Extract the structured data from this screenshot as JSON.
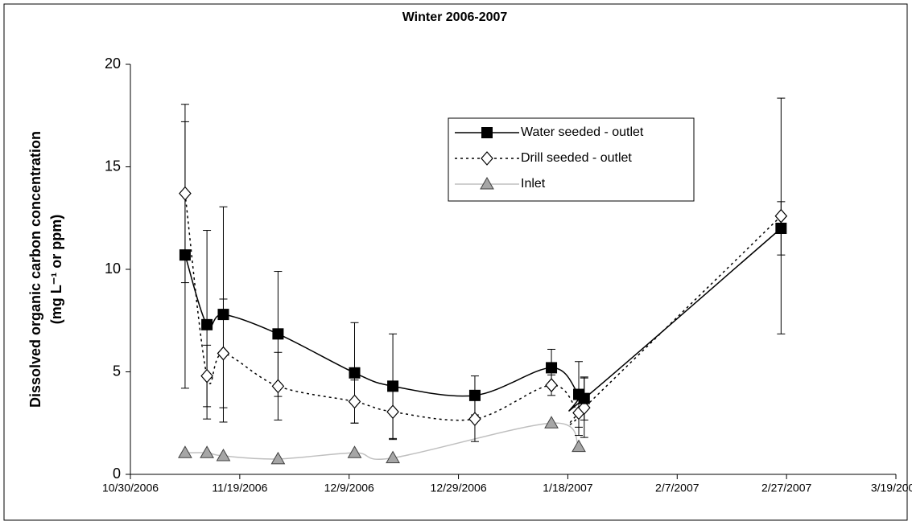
{
  "chart_data": {
    "type": "line",
    "title": "Winter 2006-2007",
    "y_label": [
      "Dissolved organic carbon concentration",
      "(mg L⁻¹ or ppm)"
    ],
    "xlim": [
      "2006-10-30",
      "2007-03-19"
    ],
    "xticks": [
      {
        "value": "2006-10-30",
        "label": "10/30/2006"
      },
      {
        "value": "2006-11-19",
        "label": "11/19/2006"
      },
      {
        "value": "2006-12-09",
        "label": "12/9/2006"
      },
      {
        "value": "2006-12-29",
        "label": "12/29/2006"
      },
      {
        "value": "2007-01-18",
        "label": "1/18/2007"
      },
      {
        "value": "2007-02-07",
        "label": "2/7/2007"
      },
      {
        "value": "2007-02-27",
        "label": "2/27/2007"
      },
      {
        "value": "2007-03-19",
        "label": "3/19/2007"
      }
    ],
    "ylim": [
      0,
      20
    ],
    "yticks": [
      0,
      5,
      10,
      15,
      20
    ],
    "legend": "top-center",
    "series": [
      {
        "name": "Water seeded - outlet",
        "color": "#000000",
        "marker": "square",
        "dash": "solid",
        "x": [
          "2006-11-09",
          "2006-11-13",
          "2006-11-16",
          "2006-11-26",
          "2006-12-10",
          "2006-12-17",
          "2007-01-01",
          "2007-01-15",
          "2007-01-20",
          "2007-01-21",
          "2007-02-26"
        ],
        "values": [
          10.7,
          7.3,
          7.8,
          6.85,
          4.95,
          4.3,
          3.85,
          5.2,
          3.9,
          3.7,
          12.0
        ],
        "errors": [
          6.5,
          4.6,
          5.25,
          3.05,
          2.45,
          2.55,
          0.95,
          0.9,
          1.6,
          1.05,
          1.3
        ]
      },
      {
        "name": "Drill seeded  - outlet",
        "color": "#000000",
        "marker": "diamond",
        "dash": "dotted",
        "x": [
          "2006-11-09",
          "2006-11-13",
          "2006-11-16",
          "2006-11-26",
          "2006-12-10",
          "2006-12-17",
          "2007-01-01",
          "2007-01-15",
          "2007-01-20",
          "2007-01-21",
          "2007-02-26"
        ],
        "values": [
          13.7,
          4.8,
          5.9,
          4.3,
          3.55,
          3.05,
          2.7,
          4.35,
          3.0,
          3.25,
          12.6
        ],
        "errors": [
          4.35,
          1.5,
          2.65,
          1.65,
          1.05,
          1.35,
          1.1,
          0.5,
          1.1,
          1.45,
          5.75
        ]
      },
      {
        "name": "Inlet",
        "color": "#bfbfbf",
        "marker": "triangle",
        "dash": "solid",
        "x": [
          "2006-11-09",
          "2006-11-13",
          "2006-11-16",
          "2006-11-26",
          "2006-12-10",
          "2006-12-17",
          "2007-01-15",
          "2007-01-20"
        ],
        "values": [
          1.05,
          1.05,
          0.9,
          0.75,
          1.05,
          0.8,
          2.5,
          1.35
        ]
      }
    ]
  }
}
